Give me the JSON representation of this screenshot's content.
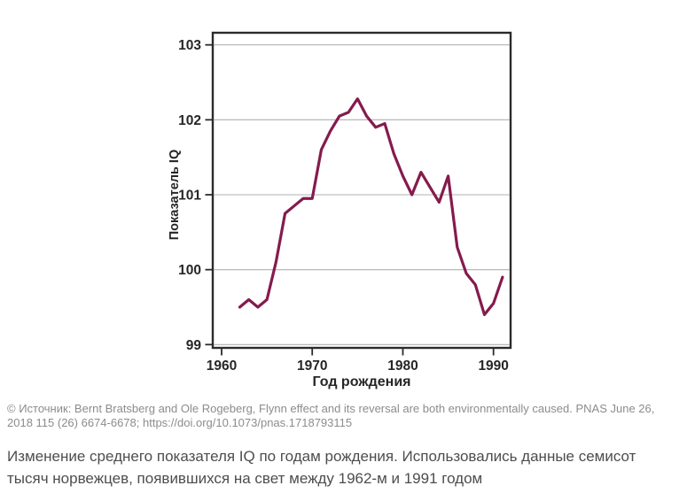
{
  "chart_data": {
    "type": "line",
    "title": "",
    "xlabel": "Год рождения",
    "ylabel": "Показатель IQ",
    "x": [
      1962,
      1963,
      1964,
      1965,
      1966,
      1967,
      1968,
      1969,
      1970,
      1971,
      1972,
      1973,
      1974,
      1975,
      1976,
      1977,
      1978,
      1979,
      1980,
      1981,
      1982,
      1983,
      1984,
      1985,
      1986,
      1987,
      1988,
      1989,
      1990,
      1991
    ],
    "series": [
      {
        "name": "Средний показатель IQ",
        "values": [
          99.5,
          99.6,
          99.5,
          99.6,
          100.1,
          100.75,
          100.85,
          100.95,
          100.95,
          101.6,
          101.85,
          102.05,
          102.1,
          102.28,
          102.05,
          101.9,
          101.95,
          101.55,
          101.25,
          101.0,
          101.3,
          101.1,
          100.9,
          101.25,
          100.3,
          99.95,
          99.8,
          99.4,
          99.55,
          99.9
        ]
      }
    ],
    "x_ticks": [
      1960,
      1970,
      1980,
      1990
    ],
    "y_ticks": [
      99,
      100,
      101,
      102,
      103
    ],
    "xlim": [
      1959,
      1992
    ],
    "ylim": [
      99,
      103
    ],
    "grid": true,
    "legend": "none",
    "line_color": "#841b4d",
    "frame_color": "#2b2b2b",
    "grid_color": "#b0b0b0"
  },
  "source": {
    "text": "© Источник: Bernt Bratsberg and Ole Rogeberg, Flynn effect and its reversal are both environmentally caused. PNAS June 26, 2018 115 (26) 6674-6678; https://doi.org/10.1073/pnas.1718793115"
  },
  "caption": {
    "text": "Изменение среднего показателя IQ по годам рождения. Использовались данные семисот тысяч норвежцев, появившихся на свет между 1962-м и 1991 годом"
  }
}
